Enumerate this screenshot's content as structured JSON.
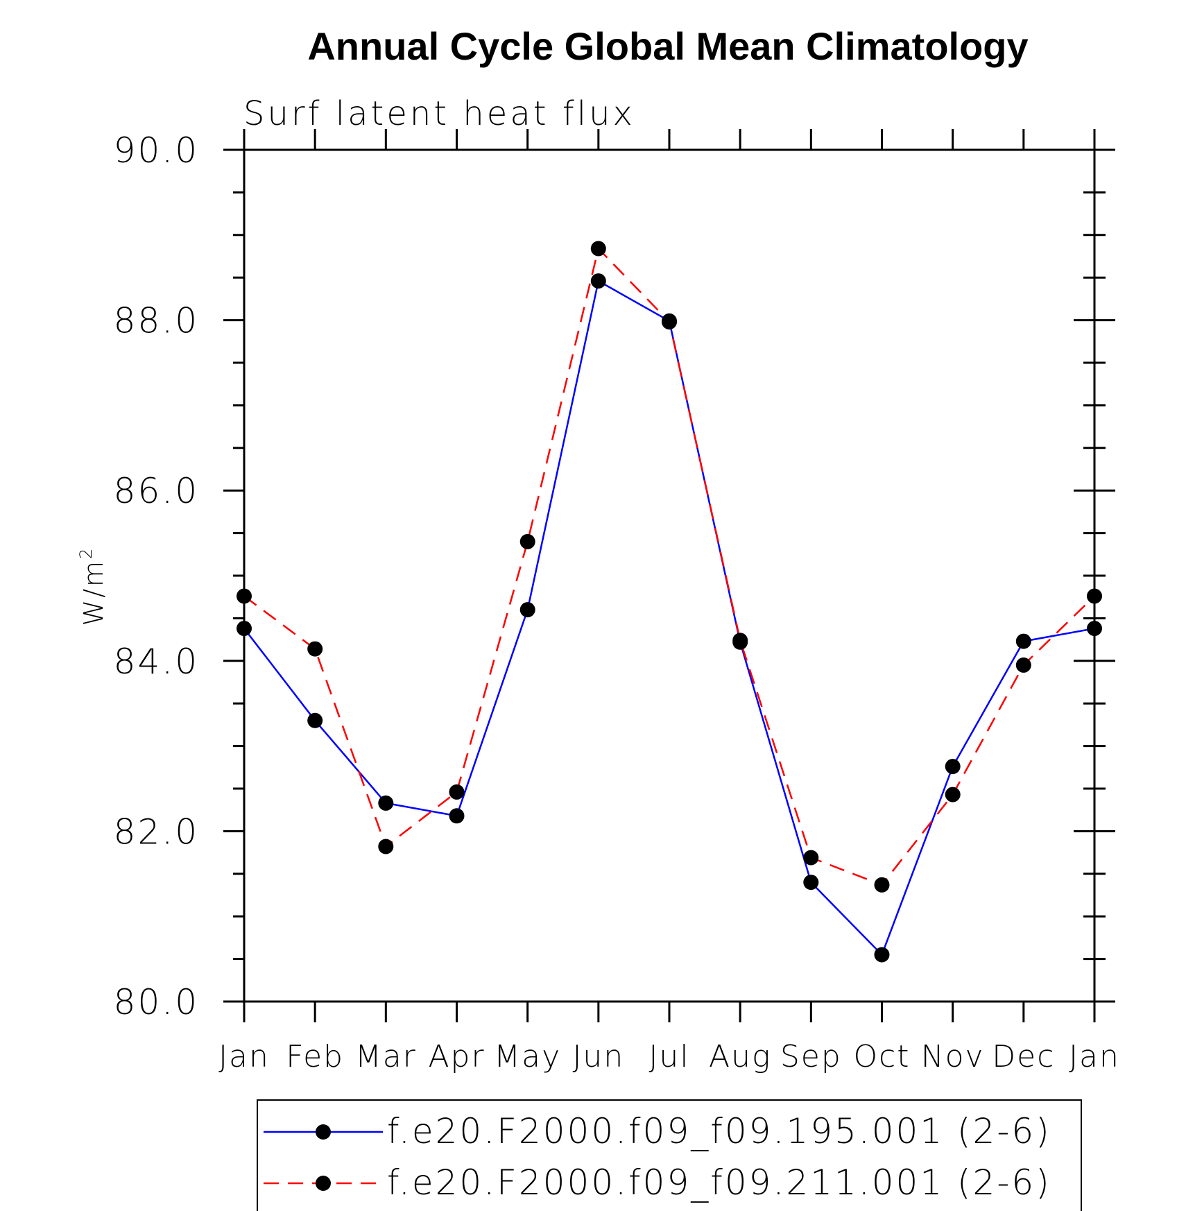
{
  "chart_data": {
    "type": "line",
    "title": "Annual Cycle Global Mean Climatology",
    "subtitle": "Surf latent heat flux",
    "xlabel": "",
    "ylabel": "W/m",
    "ylabel_superscript": "2",
    "ylim": [
      80.0,
      90.0
    ],
    "yticks": [
      80.0,
      82.0,
      84.0,
      86.0,
      88.0,
      90.0
    ],
    "ytick_labels": [
      "80.0",
      "82.0",
      "84.0",
      "86.0",
      "88.0",
      "90.0"
    ],
    "categories": [
      "Jan",
      "Feb",
      "Mar",
      "Apr",
      "May",
      "Jun",
      "Jul",
      "Aug",
      "Sep",
      "Oct",
      "Nov",
      "Dec",
      "Jan"
    ],
    "series": [
      {
        "name": "f.e20.F2000.f09_f09.195.001 (2-6)",
        "color": "#0000ff",
        "dashed": false,
        "values": [
          84.38,
          83.3,
          82.33,
          82.18,
          84.6,
          88.46,
          87.99,
          84.22,
          81.4,
          80.55,
          82.76,
          84.23,
          84.38
        ]
      },
      {
        "name": "f.e20.F2000.f09_f09.211.001 (2-6)",
        "color": "#ff0000",
        "dashed": true,
        "values": [
          84.76,
          84.14,
          81.82,
          82.46,
          85.4,
          88.84,
          87.98,
          84.24,
          81.69,
          81.37,
          82.43,
          83.95,
          84.76
        ]
      }
    ],
    "marker_color": "#000000",
    "legend_position": "bottom-center",
    "grid": false
  }
}
